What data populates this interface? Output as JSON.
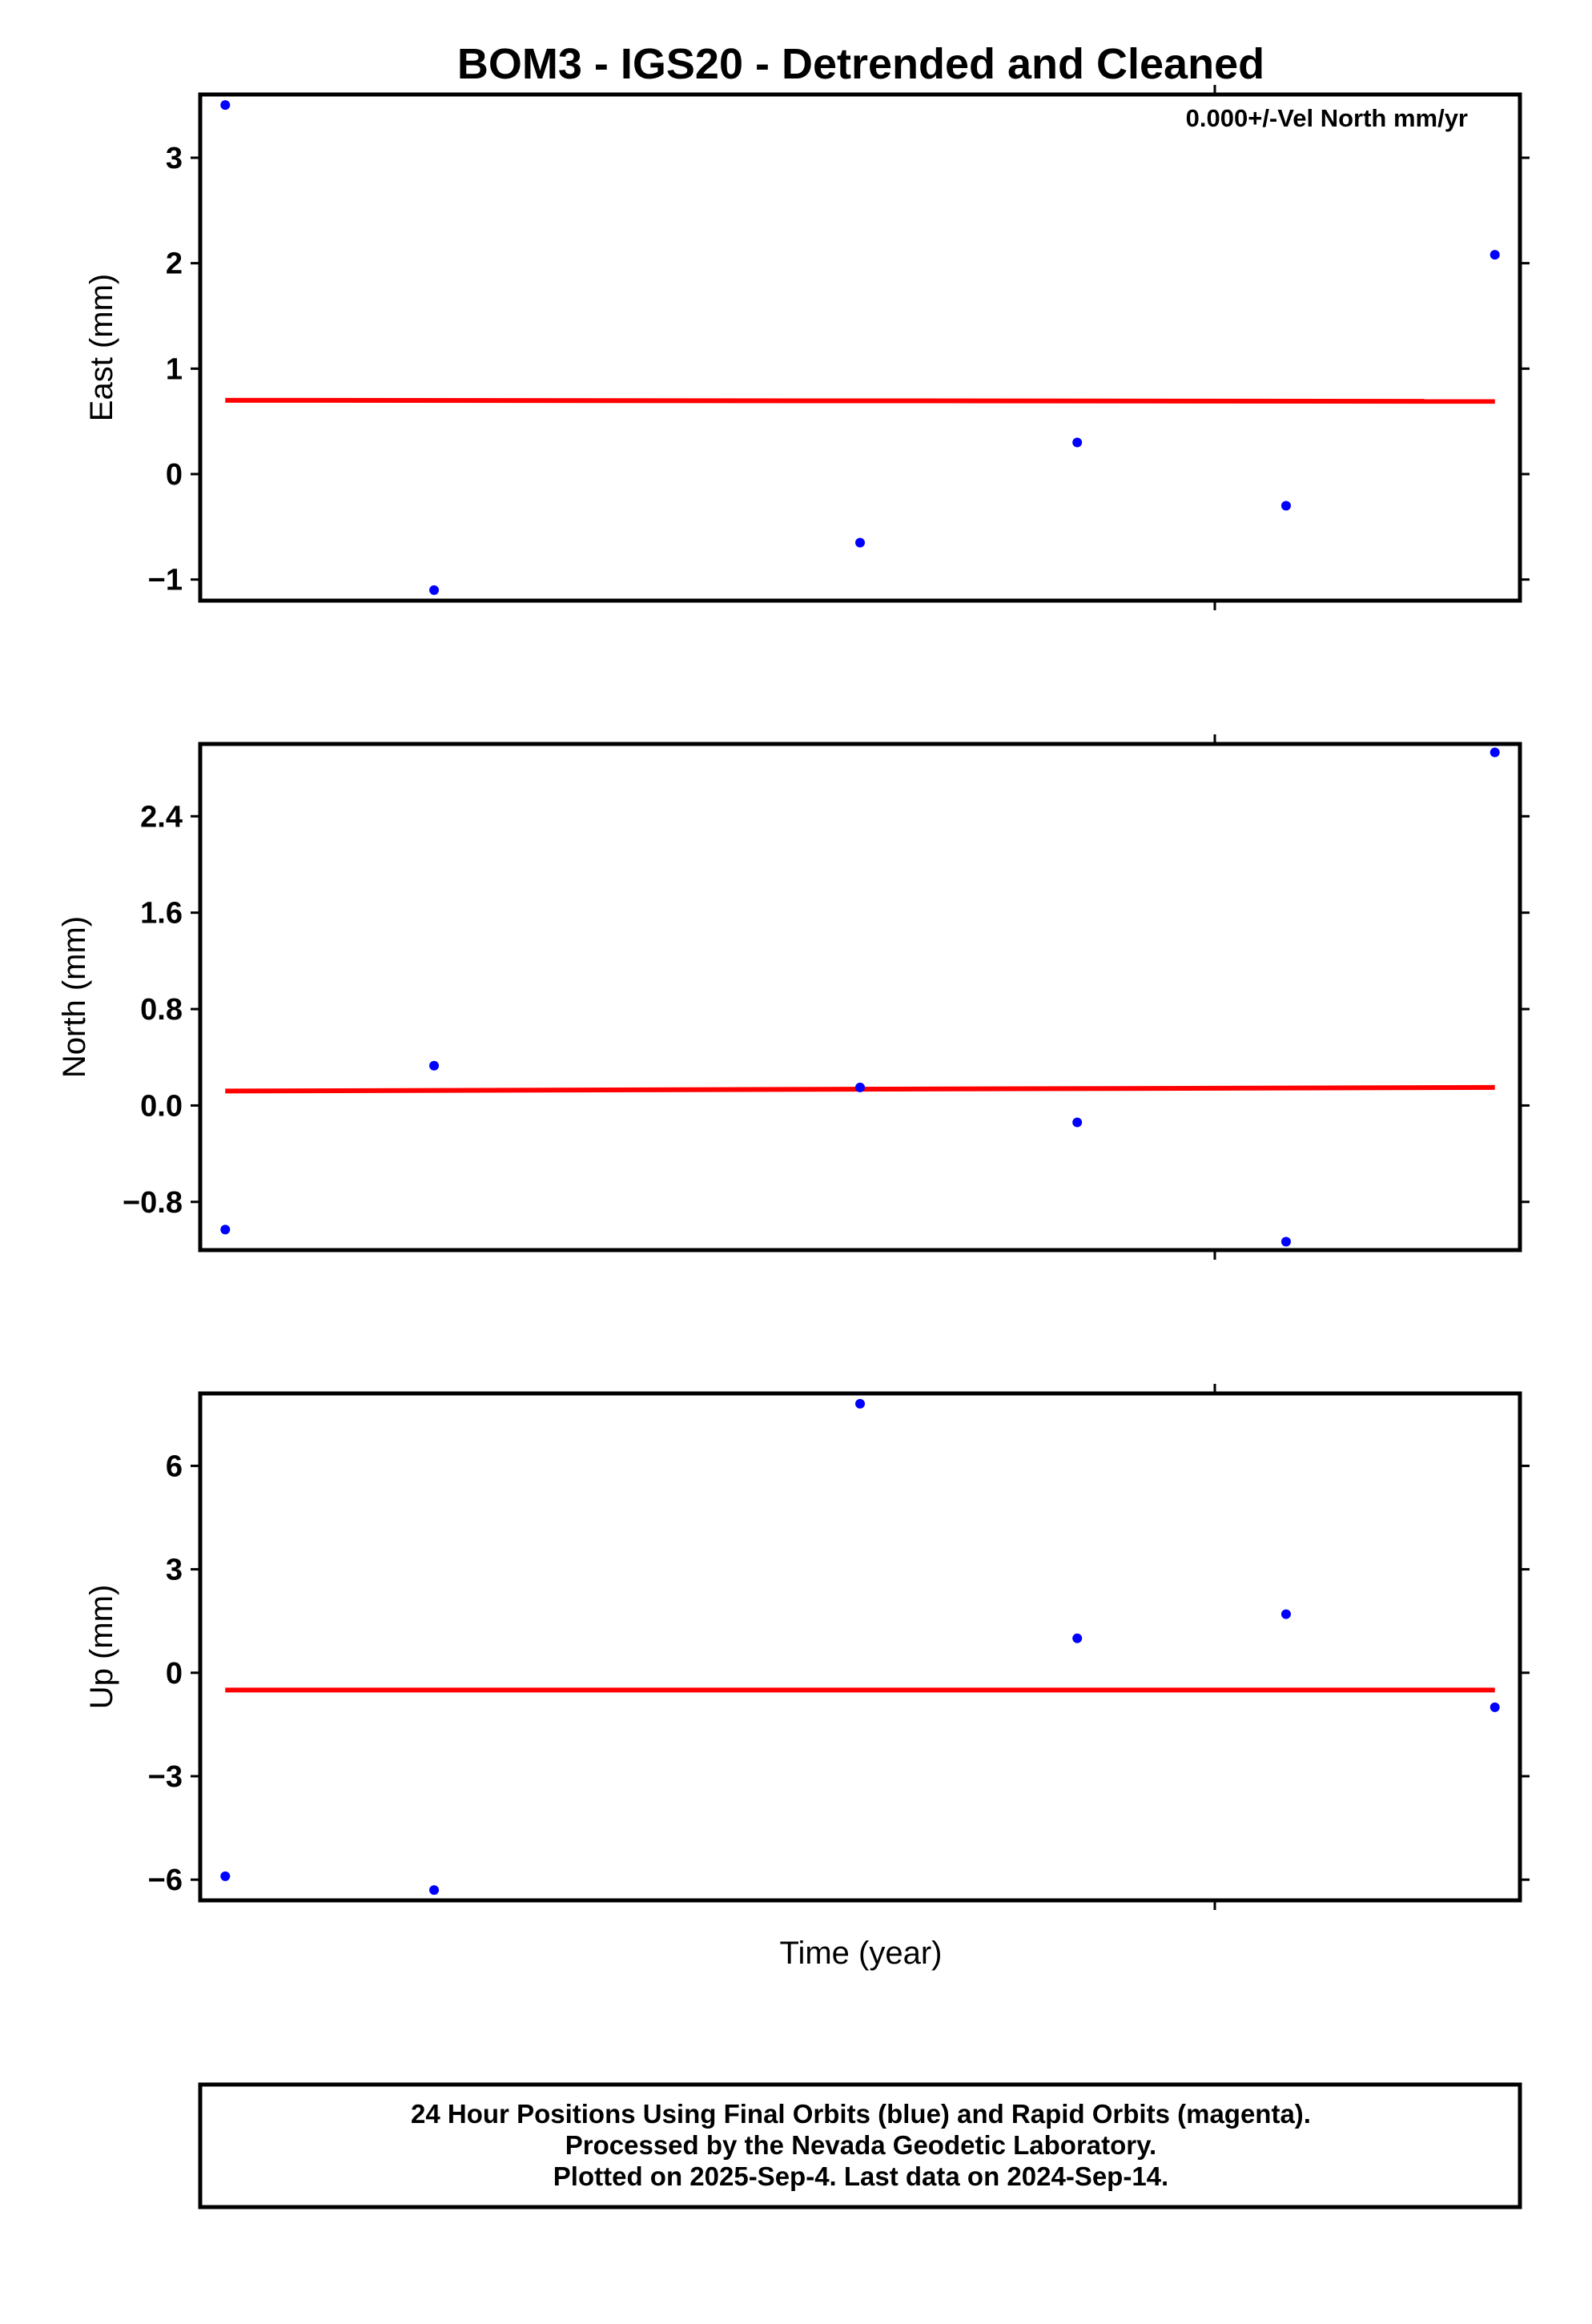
{
  "chart_data": {
    "type": "scatter",
    "title": "BOM3 - IGS20 - Detrended and Cleaned",
    "xlabel": "Time (year)",
    "x": [
      0,
      1,
      3.04,
      4.08,
      5.08,
      6.08
    ],
    "xlim": [
      -0.12,
      6.2
    ],
    "point_color": "#0000ff",
    "trend_color": "#ff0000",
    "panels": [
      {
        "name": "east",
        "ylabel": "East (mm)",
        "ylim": [
          -1.2,
          3.6
        ],
        "yticks": [
          -1,
          0,
          1,
          2,
          3
        ],
        "yticklabels": [
          "−1",
          "0",
          "1",
          "2",
          "3"
        ],
        "values": [
          3.5,
          -1.1,
          -0.65,
          0.3,
          -0.3,
          2.08
        ],
        "trend": [
          0.7,
          0.69
        ],
        "annotation": "0.000+/-Vel North mm/yr"
      },
      {
        "name": "north",
        "ylabel": "North (mm)",
        "ylim": [
          -1.2,
          3.0
        ],
        "yticks": [
          -0.8,
          0.0,
          0.8,
          1.6,
          2.4
        ],
        "yticklabels": [
          "−0.8",
          "0.0",
          "0.8",
          "1.6",
          "2.4"
        ],
        "values": [
          -1.03,
          0.33,
          0.15,
          -0.14,
          -1.13,
          2.93
        ],
        "trend": [
          0.12,
          0.15
        ],
        "annotation": ""
      },
      {
        "name": "up",
        "ylabel": "Up (mm)",
        "ylim": [
          -6.6,
          8.1
        ],
        "yticks": [
          -6,
          -3,
          0,
          3,
          6
        ],
        "yticklabels": [
          "−6",
          "−3",
          "0",
          "3",
          "6"
        ],
        "values": [
          -5.9,
          -6.3,
          7.8,
          1.0,
          1.7,
          -1.0
        ],
        "trend": [
          -0.5,
          -0.5
        ],
        "annotation": ""
      }
    ]
  },
  "footer": {
    "line1": "24 Hour Positions Using Final Orbits (blue) and Rapid Orbits (magenta).",
    "line2": "Processed by the Nevada Geodetic Laboratory.",
    "line3": "Plotted on 2025-Sep-4. Last data on 2024-Sep-14."
  }
}
